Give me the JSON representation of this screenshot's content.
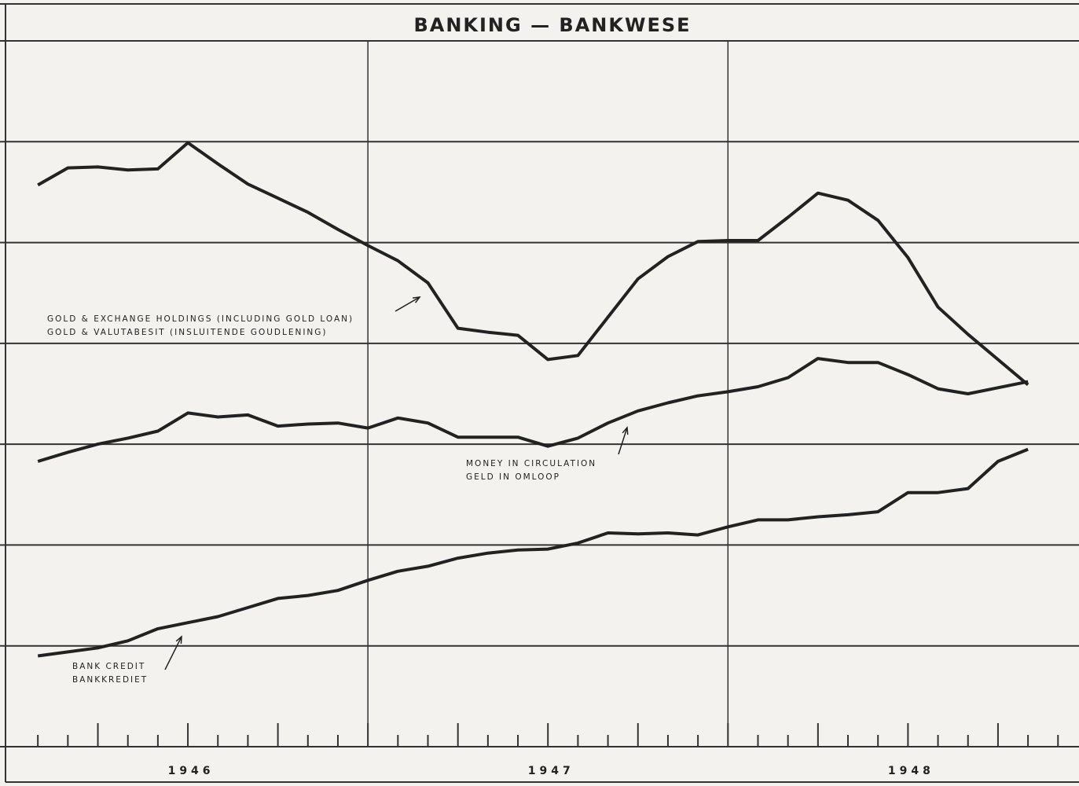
{
  "chart_data": {
    "type": "line",
    "title": "BANKING — BANKWESE",
    "x": [
      1,
      2,
      3,
      4,
      5,
      6,
      7,
      8,
      9,
      10,
      11,
      12,
      13,
      14,
      15,
      16,
      17,
      18,
      19,
      20,
      21,
      22,
      23,
      24,
      25,
      26,
      27,
      28,
      29,
      30,
      31,
      32,
      33,
      34
    ],
    "series": [
      {
        "color": "#222222",
        "values": [
          5.57,
          5.74,
          5.75,
          5.72,
          5.73,
          5.99,
          5.78,
          5.58,
          5.44,
          5.3,
          5.13,
          4.97,
          4.82,
          4.6,
          4.15,
          4.11,
          4.08,
          3.84,
          3.88,
          4.26,
          4.64,
          4.86,
          5.01,
          5.02,
          5.02,
          5.25,
          5.49,
          5.42,
          5.22,
          4.85,
          4.36,
          4.09,
          3.84,
          3.59
        ]
      },
      {
        "color": "#222222",
        "values": [
          2.83,
          2.92,
          3.0,
          3.06,
          3.13,
          3.31,
          3.27,
          3.29,
          3.18,
          3.2,
          3.21,
          3.16,
          3.26,
          3.21,
          3.07,
          3.07,
          3.07,
          2.98,
          3.06,
          3.21,
          3.33,
          3.41,
          3.48,
          3.52,
          3.57,
          3.66,
          3.85,
          3.81,
          3.81,
          3.69,
          3.55,
          3.5,
          3.56,
          3.62
        ]
      },
      {
        "color": "#222222",
        "values": [
          0.9,
          0.94,
          0.98,
          1.05,
          1.17,
          1.23,
          1.29,
          1.38,
          1.47,
          1.5,
          1.55,
          1.65,
          1.74,
          1.79,
          1.87,
          1.92,
          1.95,
          1.96,
          2.02,
          2.12,
          2.11,
          2.12,
          2.1,
          2.18,
          2.25,
          2.25,
          2.28,
          2.3,
          2.33,
          2.52,
          2.52,
          2.56,
          2.83,
          2.95
        ]
      }
    ],
    "annotations": [
      {
        "lines": [
          "GOLD & EXCHANGE HOLDINGS (INCLUDING GOLD LOAN)",
          "GOLD & VALUTABESIT (INSLUITENDE GOUDLENING)"
        ]
      },
      {
        "lines": [
          "MONEY IN CIRCULATION",
          "GELD IN OMLOOP"
        ]
      },
      {
        "lines": [
          "BANK CREDIT",
          "BANKKREDIET"
        ]
      }
    ],
    "xlim": [
      0,
      35.7
    ],
    "xticks": [
      1,
      2,
      3,
      4,
      5,
      6,
      7,
      8,
      9,
      10,
      11,
      12,
      13,
      14,
      15,
      16,
      17,
      18,
      19,
      20,
      21,
      22,
      23,
      24,
      25,
      26,
      27,
      28,
      29,
      30,
      31,
      32,
      33,
      34,
      35
    ],
    "year_labels": [
      {
        "value": 6,
        "label": "1946"
      },
      {
        "value": 18,
        "label": "1947"
      },
      {
        "value": 30,
        "label": "1948"
      }
    ],
    "xgrid": [
      12,
      24
    ],
    "ylim": [
      0,
      7
    ],
    "yticks": [
      0,
      1,
      2,
      3,
      4,
      5,
      6,
      7
    ],
    "grid": true
  }
}
